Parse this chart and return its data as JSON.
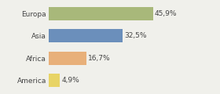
{
  "categories": [
    "Europa",
    "Asia",
    "Africa",
    "America"
  ],
  "values": [
    45.9,
    32.5,
    16.7,
    4.9
  ],
  "labels": [
    "45,9%",
    "32,5%",
    "16,7%",
    "4,9%"
  ],
  "bar_colors": [
    "#a8b87a",
    "#6b8fbb",
    "#e8b07a",
    "#e8d465"
  ],
  "background_color": "#f0f0eb",
  "xlim": [
    0,
    58
  ],
  "label_fontsize": 6.5,
  "tick_fontsize": 6.5,
  "bar_height": 0.6
}
